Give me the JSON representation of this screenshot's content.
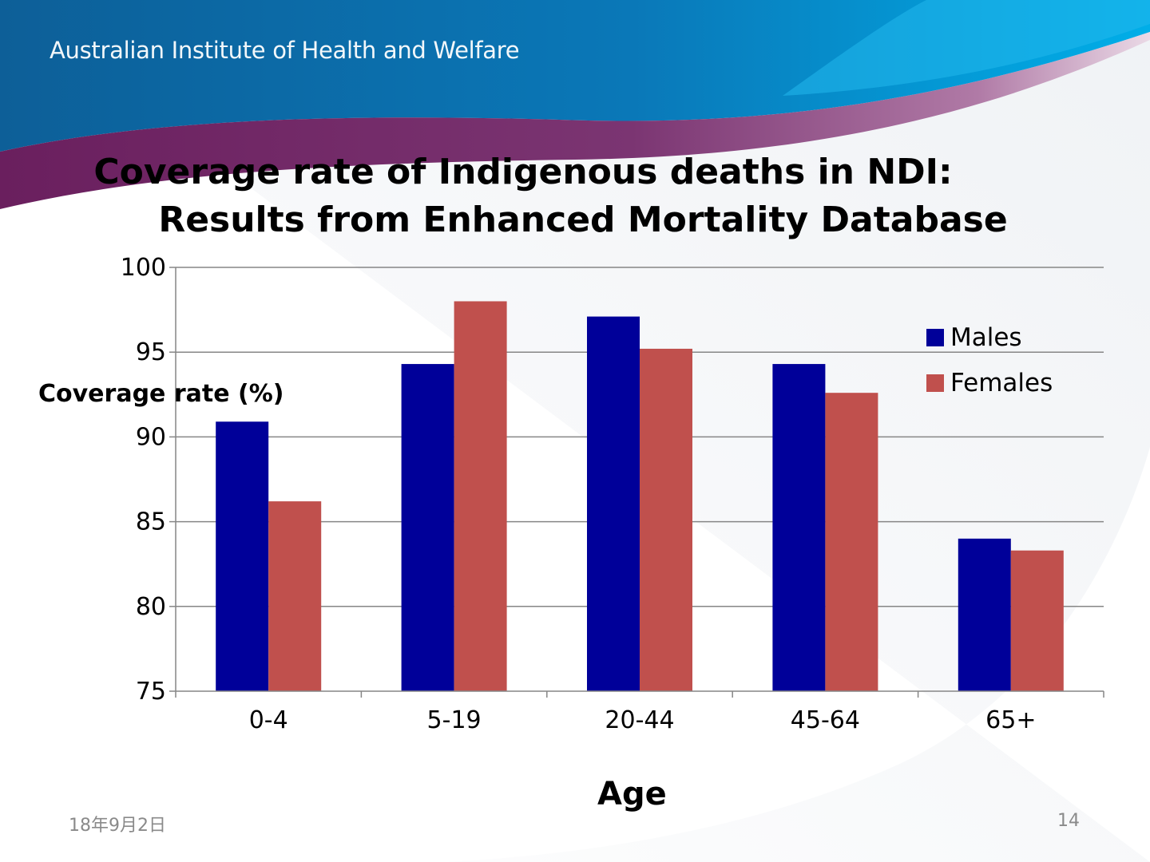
{
  "header": {
    "organization": "Australian Institute of Health and Welfare"
  },
  "title": {
    "line1": "Coverage rate of Indigenous deaths in NDI:",
    "line2": "Results from Enhanced Mortality Database"
  },
  "footer": {
    "date": "18年9月2日",
    "page": "14"
  },
  "chart_data": {
    "type": "bar",
    "categories": [
      "0-4",
      "5-19",
      "20-44",
      "45-64",
      "65+"
    ],
    "series": [
      {
        "name": "Males",
        "color": "#000099",
        "values": [
          90.9,
          94.3,
          97.1,
          94.3,
          84.0
        ]
      },
      {
        "name": "Females",
        "color": "#C0504D",
        "values": [
          86.2,
          98.0,
          95.2,
          92.6,
          83.3
        ]
      }
    ],
    "xlabel": "Age",
    "ylabel": "Coverage rate (%)",
    "ylim": [
      75,
      100
    ],
    "yticks": [
      "75",
      "80",
      "85",
      "90",
      "95",
      "100"
    ],
    "grid": true,
    "legend_position": "top-right"
  }
}
